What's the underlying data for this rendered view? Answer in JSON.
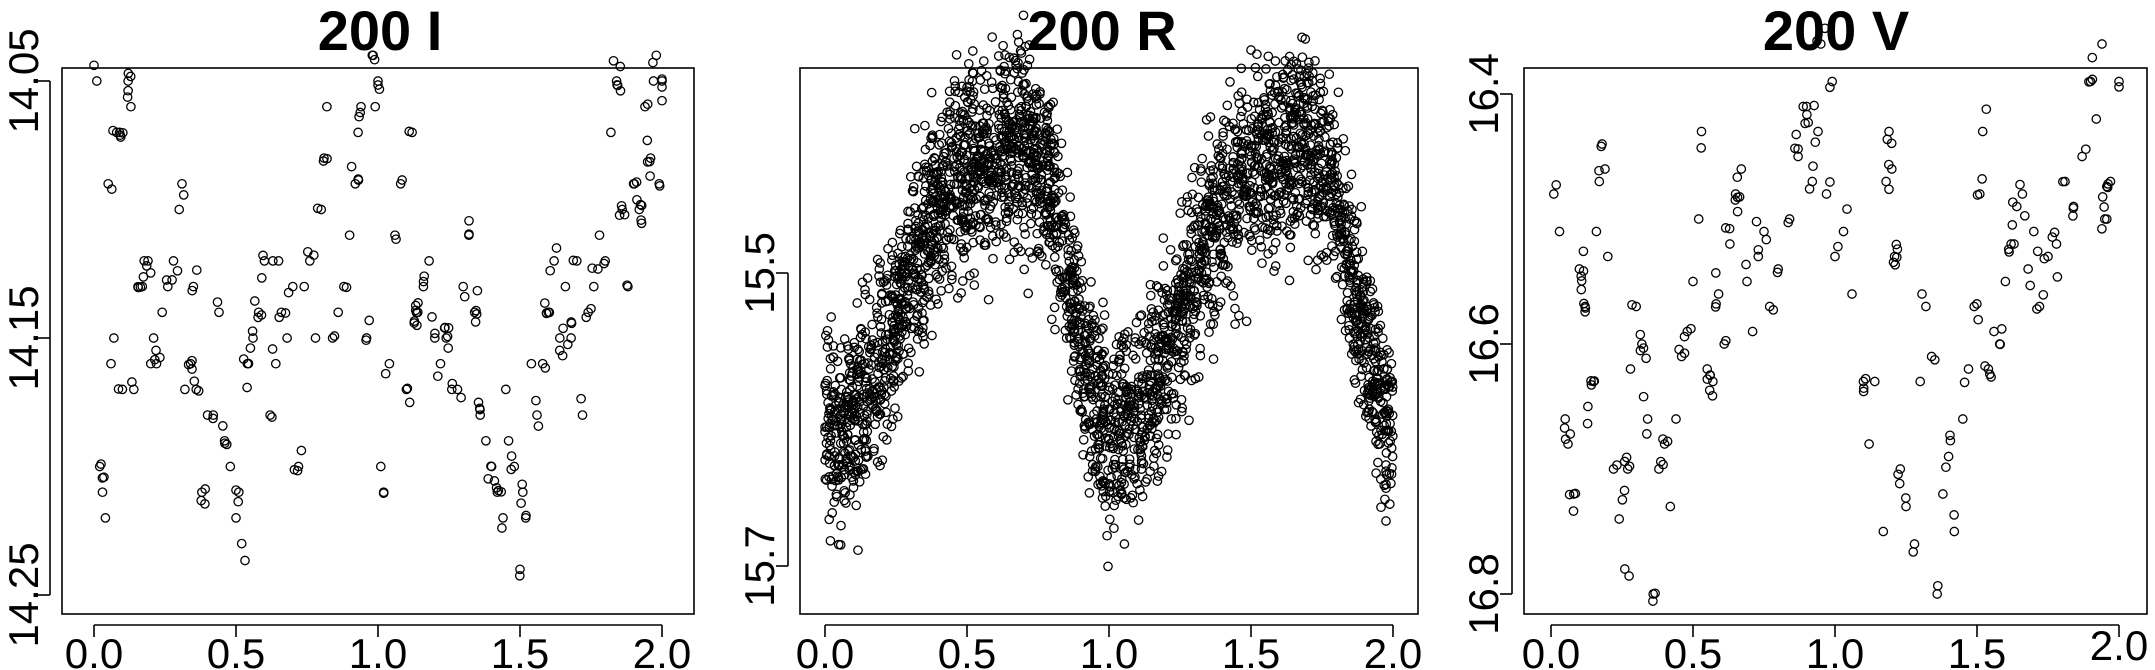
{
  "chart_data": [
    {
      "type": "scatter",
      "title": "200 I",
      "xlabel": "",
      "ylabel": "",
      "xlim": [
        -0.08,
        2.08
      ],
      "ylim": [
        14.25,
        14.04
      ],
      "y_inverted": true,
      "xticks": [
        0.0,
        0.5,
        1.0,
        1.5,
        2.0
      ],
      "xtick_labels": [
        "0.0",
        "0.5",
        "1.0",
        "1.5",
        "2.0"
      ],
      "yticks": [
        14.05,
        14.15,
        14.25
      ],
      "ytick_labels": [
        "14.05",
        "14.15",
        "14.25"
      ],
      "grid": false,
      "marker": "open-circle",
      "n_points": 300,
      "points": [
        [
          0.01,
          14.05
        ],
        [
          0.02,
          14.2
        ],
        [
          0.03,
          14.21
        ],
        [
          0.04,
          14.22
        ],
        [
          0.05,
          14.09
        ],
        [
          0.06,
          14.16
        ],
        [
          0.07,
          14.15
        ],
        [
          0.08,
          14.07
        ],
        [
          0.09,
          14.07
        ],
        [
          0.1,
          14.17
        ],
        [
          0.12,
          14.05
        ],
        [
          0.13,
          14.06
        ],
        [
          0.14,
          14.17
        ],
        [
          0.17,
          14.13
        ],
        [
          0.19,
          14.12
        ],
        [
          0.2,
          14.16
        ],
        [
          0.21,
          14.15
        ],
        [
          0.22,
          14.16
        ],
        [
          0.24,
          14.14
        ],
        [
          0.26,
          14.13
        ],
        [
          0.28,
          14.12
        ],
        [
          0.3,
          14.1
        ],
        [
          0.31,
          14.09
        ],
        [
          0.32,
          14.17
        ],
        [
          0.34,
          14.16
        ],
        [
          0.36,
          14.17
        ],
        [
          0.38,
          14.21
        ],
        [
          0.4,
          14.18
        ],
        [
          0.42,
          14.18
        ],
        [
          0.44,
          14.14
        ],
        [
          0.46,
          14.19
        ],
        [
          0.48,
          14.2
        ],
        [
          0.5,
          14.22
        ],
        [
          0.51,
          14.21
        ],
        [
          0.52,
          14.23
        ],
        [
          0.54,
          14.16
        ],
        [
          0.56,
          14.15
        ],
        [
          0.58,
          14.14
        ],
        [
          0.6,
          14.12
        ],
        [
          0.62,
          14.18
        ],
        [
          0.63,
          14.12
        ],
        [
          0.64,
          14.16
        ],
        [
          0.66,
          14.14
        ],
        [
          0.68,
          14.15
        ],
        [
          0.7,
          14.13
        ],
        [
          0.72,
          14.2
        ],
        [
          0.74,
          14.13
        ],
        [
          0.76,
          14.12
        ],
        [
          0.78,
          14.15
        ],
        [
          0.8,
          14.1
        ],
        [
          0.81,
          14.08
        ],
        [
          0.82,
          14.06
        ],
        [
          0.84,
          14.15
        ],
        [
          0.86,
          14.14
        ],
        [
          0.88,
          14.13
        ],
        [
          0.9,
          14.11
        ],
        [
          0.92,
          14.09
        ],
        [
          0.93,
          14.07
        ],
        [
          0.94,
          14.06
        ],
        [
          0.96,
          14.15
        ],
        [
          0.98,
          14.04
        ],
        [
          0.99,
          14.06
        ],
        [
          1.0,
          14.05
        ],
        [
          1.01,
          14.2
        ],
        [
          1.02,
          14.21
        ],
        [
          1.04,
          14.16
        ],
        [
          1.06,
          14.11
        ],
        [
          1.08,
          14.09
        ],
        [
          1.1,
          14.17
        ],
        [
          1.12,
          14.07
        ],
        [
          1.14,
          14.14
        ],
        [
          1.16,
          14.13
        ],
        [
          1.18,
          14.12
        ],
        [
          1.2,
          14.15
        ],
        [
          1.22,
          14.16
        ],
        [
          1.24,
          14.15
        ],
        [
          1.26,
          14.17
        ],
        [
          1.28,
          14.17
        ],
        [
          1.3,
          14.13
        ],
        [
          1.32,
          14.11
        ],
        [
          1.34,
          14.14
        ],
        [
          1.36,
          14.18
        ],
        [
          1.38,
          14.19
        ],
        [
          1.4,
          14.2
        ],
        [
          1.42,
          14.21
        ],
        [
          1.44,
          14.22
        ],
        [
          1.46,
          14.19
        ],
        [
          1.48,
          14.2
        ],
        [
          1.5,
          14.24
        ],
        [
          1.51,
          14.21
        ],
        [
          1.52,
          14.22
        ],
        [
          1.54,
          14.16
        ],
        [
          1.56,
          14.18
        ],
        [
          1.58,
          14.16
        ],
        [
          1.6,
          14.14
        ],
        [
          1.62,
          14.12
        ],
        [
          1.64,
          14.15
        ],
        [
          1.66,
          14.13
        ],
        [
          1.68,
          14.15
        ],
        [
          1.7,
          14.12
        ],
        [
          1.72,
          14.18
        ],
        [
          1.74,
          14.14
        ],
        [
          1.76,
          14.13
        ],
        [
          1.78,
          14.11
        ],
        [
          1.8,
          14.12
        ],
        [
          1.82,
          14.07
        ],
        [
          1.84,
          14.05
        ],
        [
          1.86,
          14.1
        ],
        [
          1.88,
          14.13
        ],
        [
          1.9,
          14.09
        ],
        [
          1.92,
          14.1
        ],
        [
          1.94,
          14.06
        ],
        [
          1.96,
          14.08
        ],
        [
          1.97,
          14.05
        ],
        [
          1.98,
          14.04
        ],
        [
          1.99,
          14.09
        ],
        [
          2.0,
          14.05
        ],
        [
          0.35,
          14.13
        ],
        [
          0.65,
          14.12
        ],
        [
          1.45,
          14.17
        ]
      ]
    },
    {
      "type": "scatter",
      "title": "200 R",
      "xlabel": "",
      "ylabel": "",
      "xlim": [
        -0.04,
        2.04
      ],
      "ylim": [
        15.76,
        15.32
      ],
      "y_inverted": true,
      "xticks": [
        0.0,
        0.5,
        1.0,
        1.5,
        2.0
      ],
      "xtick_labels": [
        "0.0",
        "0.5",
        "1.0",
        "1.5",
        "2.0"
      ],
      "yticks": [
        15.5,
        15.7
      ],
      "ytick_labels": [
        "15.5",
        "15.7"
      ],
      "grid": false,
      "marker": "open-circle",
      "n_points": 3400,
      "curve": {
        "period_x": 1.0,
        "x": [
          0.0,
          0.1,
          0.2,
          0.3,
          0.4,
          0.5,
          0.6,
          0.7,
          0.8,
          0.9,
          1.0
        ],
        "y_mean": [
          15.61,
          15.6,
          15.56,
          15.5,
          15.45,
          15.43,
          15.42,
          15.41,
          15.45,
          15.55,
          15.61
        ],
        "y_spread": 0.13
      }
    },
    {
      "type": "scatter",
      "title": "200 V",
      "xlabel": "",
      "ylabel": "",
      "xlim": [
        -0.04,
        2.04
      ],
      "ylim": [
        16.82,
        16.32
      ],
      "y_inverted": true,
      "xticks": [
        0.0,
        0.5,
        1.0,
        1.5,
        2.0
      ],
      "xtick_labels": [
        "0.0",
        "0.5",
        "1.0",
        "1.5",
        "2.0"
      ],
      "yticks": [
        16.4,
        16.6,
        16.8
      ],
      "ytick_labels": [
        "16.4",
        "16.6",
        "16.8"
      ],
      "grid": false,
      "marker": "open-circle",
      "n_points": 250,
      "points": [
        [
          0.01,
          16.48
        ],
        [
          0.03,
          16.51
        ],
        [
          0.05,
          16.66
        ],
        [
          0.06,
          16.68
        ],
        [
          0.08,
          16.72
        ],
        [
          0.1,
          16.54
        ],
        [
          0.12,
          16.57
        ],
        [
          0.13,
          16.65
        ],
        [
          0.15,
          16.63
        ],
        [
          0.16,
          16.51
        ],
        [
          0.17,
          16.47
        ],
        [
          0.18,
          16.44
        ],
        [
          0.19,
          16.46
        ],
        [
          0.2,
          16.53
        ],
        [
          0.22,
          16.7
        ],
        [
          0.24,
          16.74
        ],
        [
          0.26,
          16.78
        ],
        [
          0.27,
          16.7
        ],
        [
          0.28,
          16.62
        ],
        [
          0.3,
          16.57
        ],
        [
          0.32,
          16.6
        ],
        [
          0.34,
          16.66
        ],
        [
          0.36,
          16.8
        ],
        [
          0.38,
          16.7
        ],
        [
          0.4,
          16.68
        ],
        [
          0.42,
          16.73
        ],
        [
          0.44,
          16.66
        ],
        [
          0.46,
          16.61
        ],
        [
          0.48,
          16.59
        ],
        [
          0.5,
          16.55
        ],
        [
          0.52,
          16.5
        ],
        [
          0.53,
          16.43
        ],
        [
          0.55,
          16.62
        ],
        [
          0.57,
          16.63
        ],
        [
          0.59,
          16.56
        ],
        [
          0.61,
          16.6
        ],
        [
          0.63,
          16.52
        ],
        [
          0.65,
          16.48
        ],
        [
          0.67,
          16.46
        ],
        [
          0.69,
          16.55
        ],
        [
          0.71,
          16.59
        ],
        [
          0.73,
          16.53
        ],
        [
          0.75,
          16.51
        ],
        [
          0.77,
          16.57
        ],
        [
          0.8,
          16.54
        ],
        [
          0.84,
          16.5
        ],
        [
          0.87,
          16.45
        ],
        [
          0.9,
          16.41
        ],
        [
          0.92,
          16.47
        ],
        [
          0.94,
          16.43
        ],
        [
          0.95,
          16.36
        ],
        [
          0.97,
          16.48
        ],
        [
          0.99,
          16.39
        ],
        [
          1.0,
          16.53
        ],
        [
          1.03,
          16.51
        ],
        [
          1.06,
          16.56
        ],
        [
          1.1,
          16.63
        ],
        [
          1.12,
          16.68
        ],
        [
          1.14,
          16.63
        ],
        [
          1.17,
          16.75
        ],
        [
          1.18,
          16.47
        ],
        [
          1.19,
          16.43
        ],
        [
          1.2,
          16.46
        ],
        [
          1.21,
          16.53
        ],
        [
          1.23,
          16.7
        ],
        [
          1.25,
          16.73
        ],
        [
          1.28,
          16.76
        ],
        [
          1.3,
          16.63
        ],
        [
          1.32,
          16.57
        ],
        [
          1.34,
          16.61
        ],
        [
          1.36,
          16.8
        ],
        [
          1.38,
          16.72
        ],
        [
          1.4,
          16.69
        ],
        [
          1.42,
          16.75
        ],
        [
          1.45,
          16.66
        ],
        [
          1.47,
          16.62
        ],
        [
          1.49,
          16.57
        ],
        [
          1.51,
          16.48
        ],
        [
          1.52,
          16.43
        ],
        [
          1.54,
          16.62
        ],
        [
          1.56,
          16.59
        ],
        [
          1.58,
          16.6
        ],
        [
          1.6,
          16.55
        ],
        [
          1.62,
          16.52
        ],
        [
          1.64,
          16.49
        ],
        [
          1.66,
          16.48
        ],
        [
          1.68,
          16.54
        ],
        [
          1.7,
          16.51
        ],
        [
          1.72,
          16.57
        ],
        [
          1.75,
          16.53
        ],
        [
          1.78,
          16.52
        ],
        [
          1.81,
          16.47
        ],
        [
          1.84,
          16.49
        ],
        [
          1.87,
          16.45
        ],
        [
          1.9,
          16.39
        ],
        [
          1.92,
          16.42
        ],
        [
          1.94,
          16.36
        ],
        [
          1.95,
          16.5
        ],
        [
          1.97,
          16.47
        ],
        [
          2.0,
          16.39
        ]
      ]
    }
  ]
}
